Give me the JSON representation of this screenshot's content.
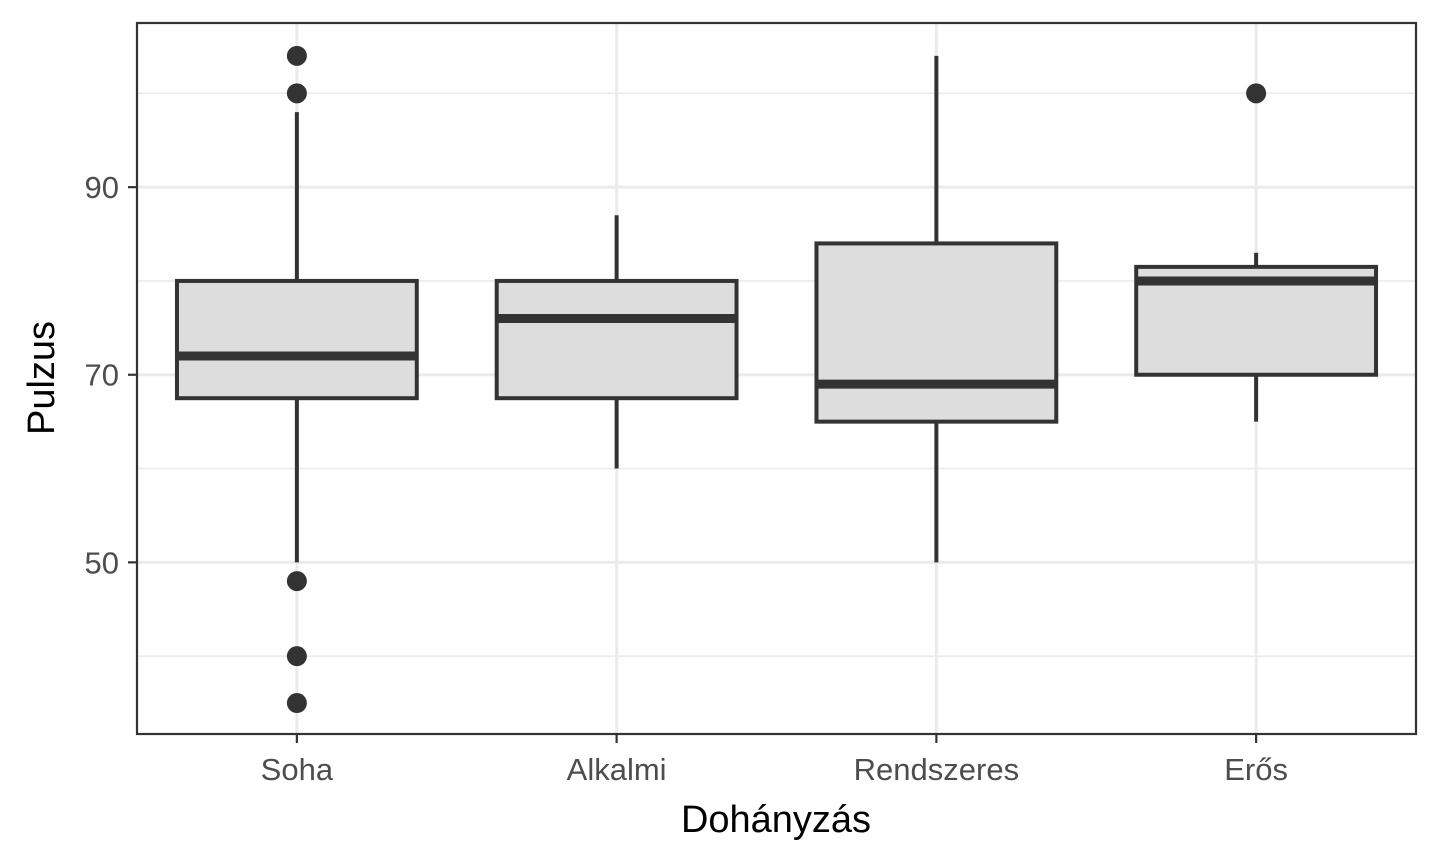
{
  "chart_data": {
    "type": "boxplot",
    "xlabel": "Dohányzás",
    "ylabel": "Pulzus",
    "categories": [
      "Soha",
      "Alkalmi",
      "Rendszeres",
      "Erős"
    ],
    "ylim": [
      31.7,
      107.5
    ],
    "yticks": [
      50,
      70,
      90
    ],
    "yminor": [
      40,
      60,
      80,
      100
    ],
    "grid": true,
    "legend": "none",
    "box_fill": "#dddddd",
    "box_stroke": "#333333",
    "boxes": [
      {
        "category": "Soha",
        "q1": 67.5,
        "median": 72,
        "q3": 80,
        "whisker_low": 50,
        "whisker_high": 98,
        "outliers": [
          104,
          100,
          48,
          40,
          35
        ]
      },
      {
        "category": "Alkalmi",
        "q1": 67.5,
        "median": 76,
        "q3": 80,
        "whisker_low": 60,
        "whisker_high": 87,
        "outliers": []
      },
      {
        "category": "Rendszeres",
        "q1": 65,
        "median": 69,
        "q3": 84,
        "whisker_low": 50,
        "whisker_high": 104,
        "outliers": []
      },
      {
        "category": "Erős",
        "q1": 70,
        "median": 80,
        "q3": 81.5,
        "whisker_low": 65,
        "whisker_high": 83,
        "outliers": [
          100
        ]
      }
    ]
  }
}
